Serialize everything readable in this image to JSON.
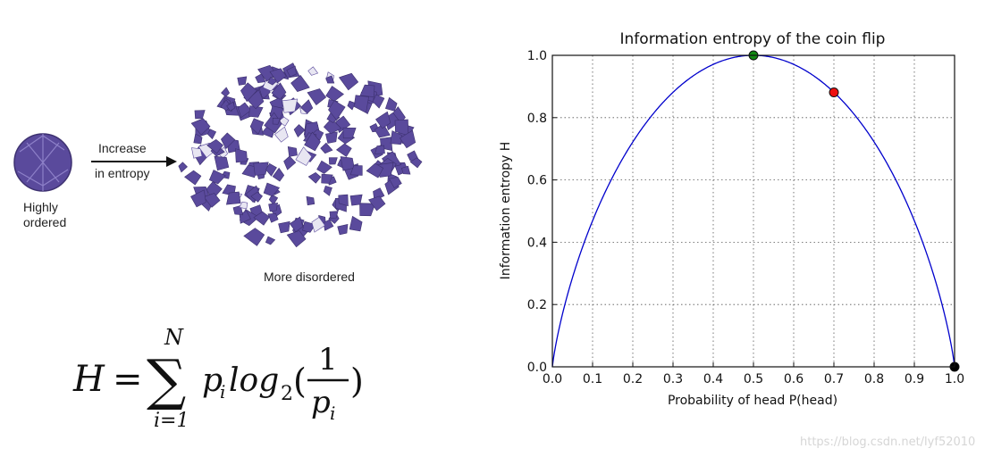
{
  "illustration": {
    "ordered_label_line1": "Highly",
    "ordered_label_line2": "ordered",
    "arrow_label_line1": "Increase",
    "arrow_label_line2": "in entropy",
    "disordered_label": "More disordered",
    "color": "#5a4a9c"
  },
  "formula": {
    "lhs": "H",
    "equals": "=",
    "sum_upper": "N",
    "sum_lower": "i=1",
    "term_p": "p",
    "term_p_sub": "i",
    "log": "log",
    "log_sub": "2",
    "numerator": "1",
    "denom_p": "p",
    "denom_sub": "i"
  },
  "chart_data": {
    "type": "line",
    "title": "Information entropy of the coin flip",
    "xlabel": "Probability of head P(head)",
    "ylabel": "Information entropy H",
    "xlim": [
      0.0,
      1.0
    ],
    "ylim": [
      0.0,
      1.0
    ],
    "x_ticks": [
      "0.0",
      "0.1",
      "0.2",
      "0.3",
      "0.4",
      "0.5",
      "0.6",
      "0.7",
      "0.8",
      "0.9",
      "1.0"
    ],
    "y_ticks": [
      "0.0",
      "0.2",
      "0.4",
      "0.6",
      "0.8",
      "1.0"
    ],
    "grid": true,
    "series": [
      {
        "function": "H(p) = -p log2 p - (1-p) log2 (1-p)",
        "color": "#0000cc"
      }
    ],
    "points": [
      {
        "x": 0.5,
        "y": 1.0,
        "color": "#118811"
      },
      {
        "x": 0.7,
        "y": 0.881,
        "color": "#ee1111"
      },
      {
        "x": 1.0,
        "y": 0.0,
        "color": "#000000"
      }
    ]
  },
  "watermark": "https://blog.csdn.net/lyf52010"
}
